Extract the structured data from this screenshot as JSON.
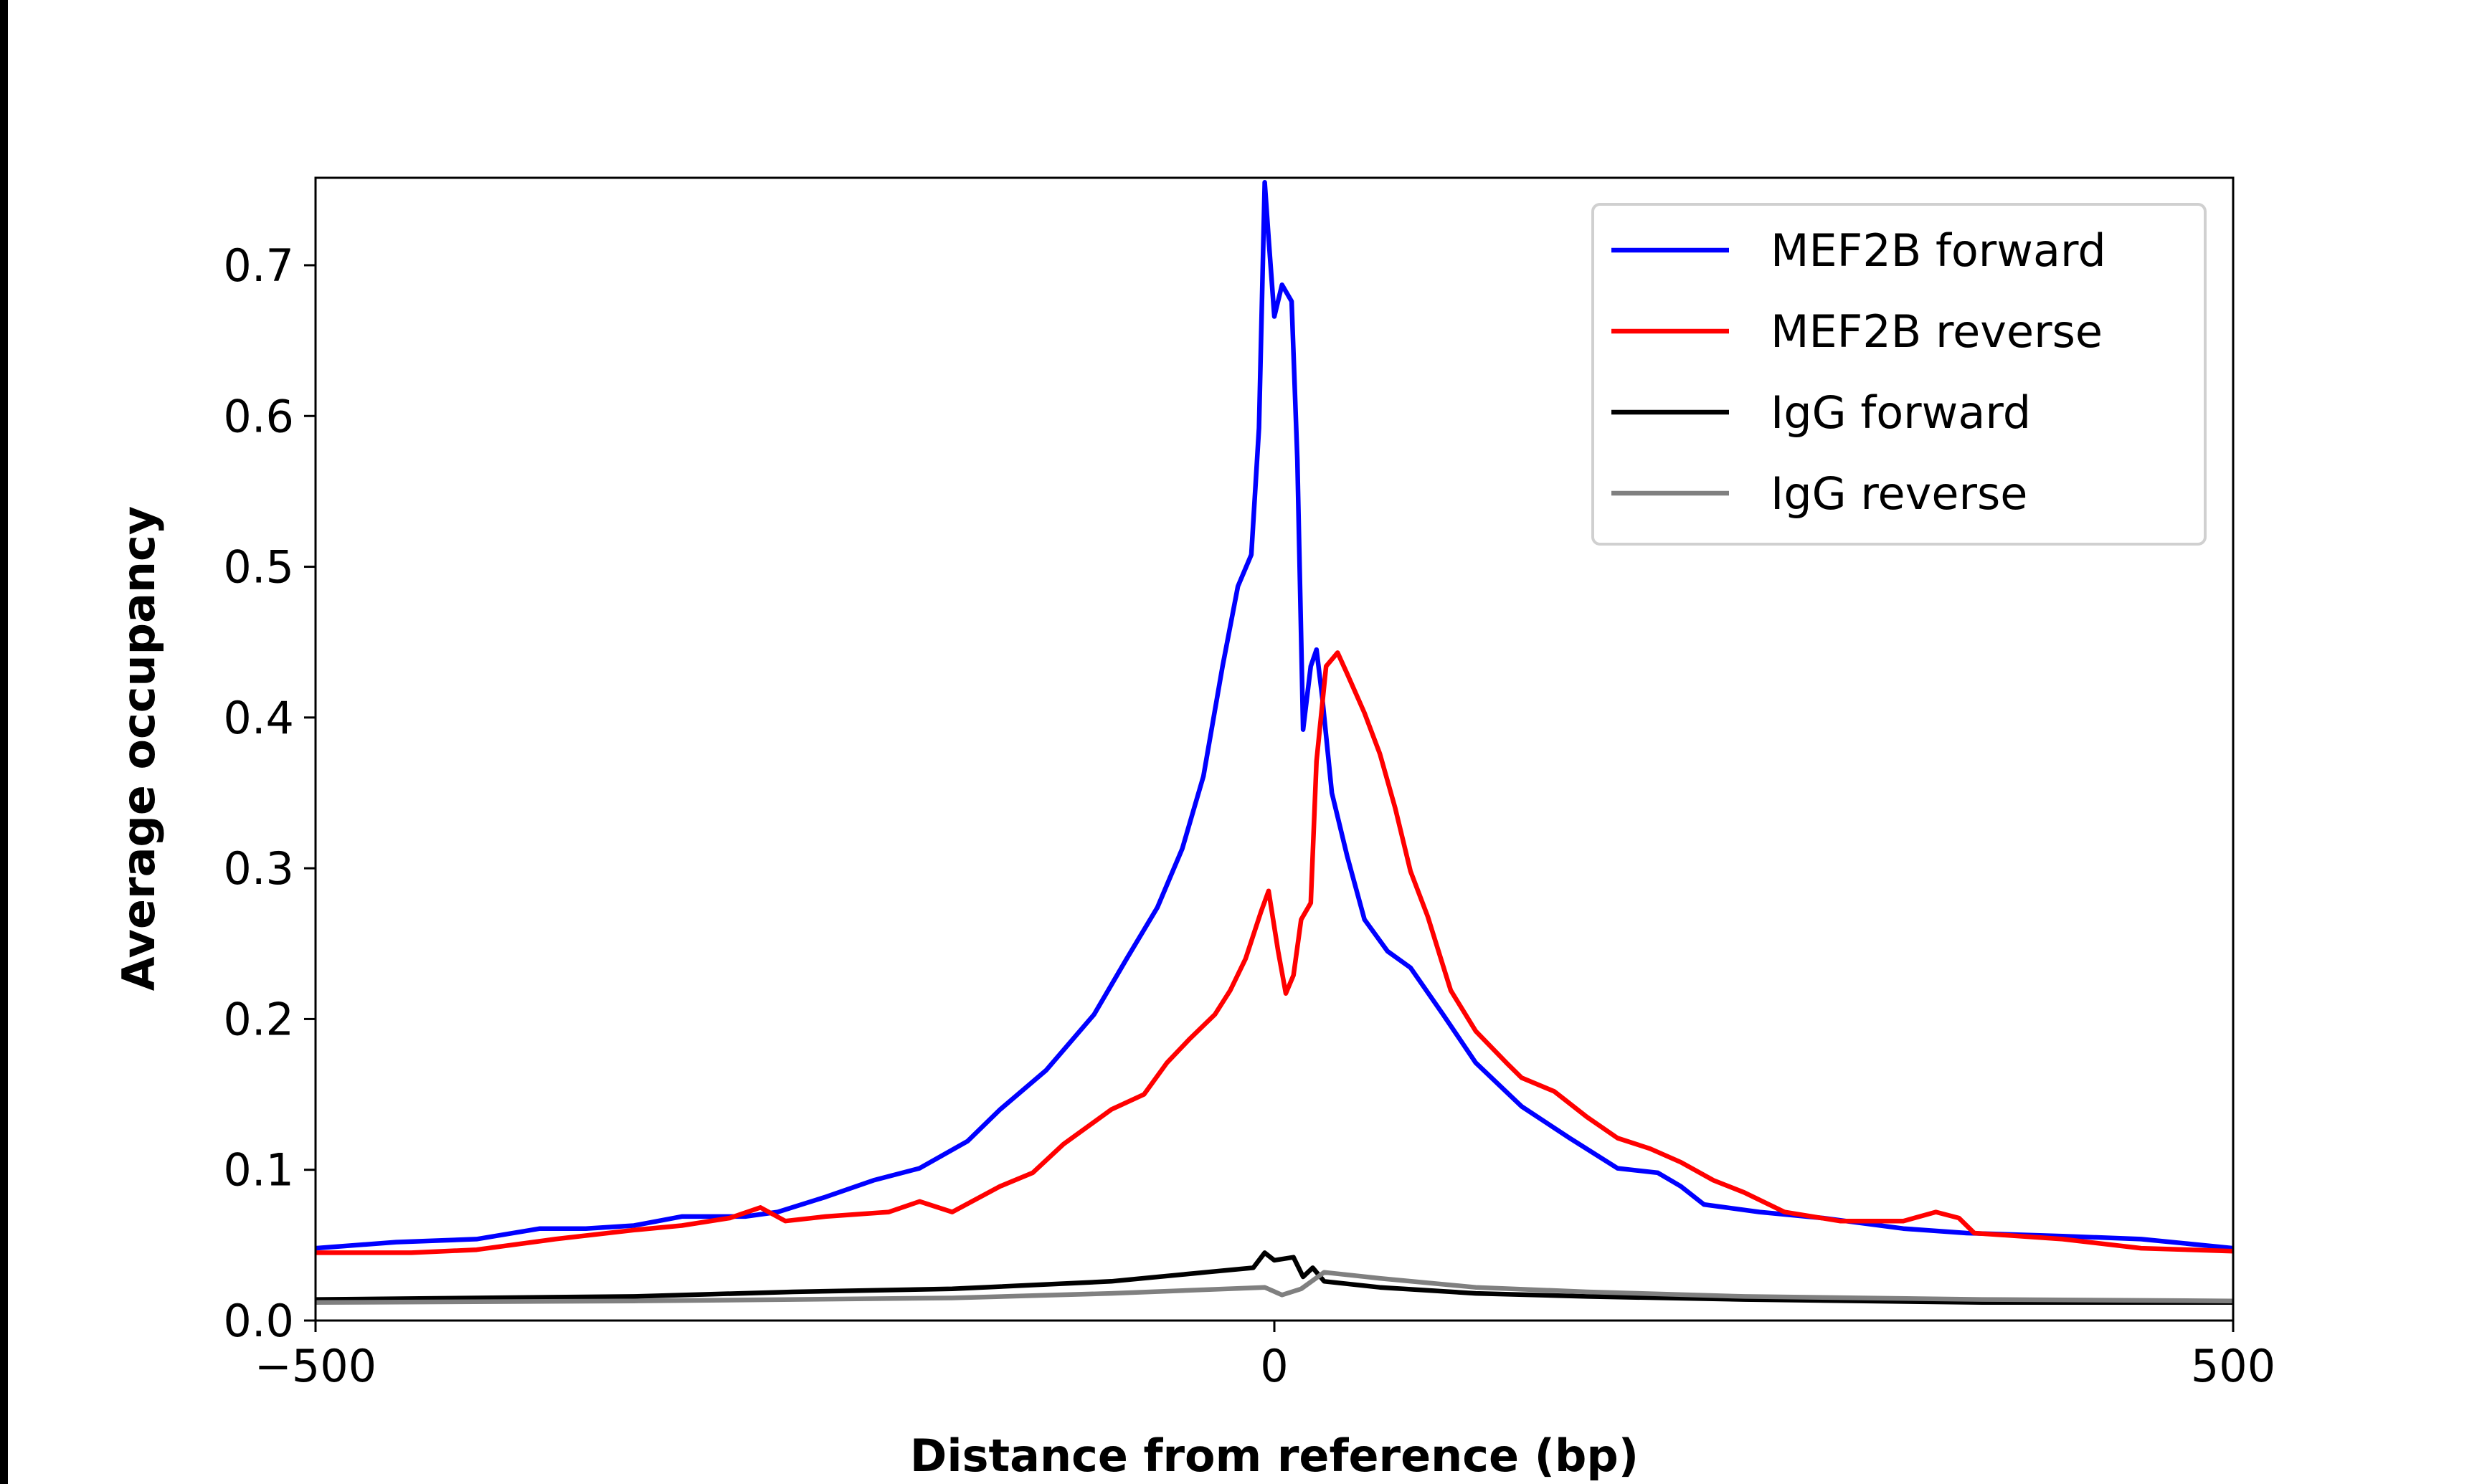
{
  "chart_data": {
    "type": "line",
    "title": "",
    "xlabel": "Distance from reference (bp)",
    "ylabel": "Average occupancy",
    "xlim": [
      -500,
      500
    ],
    "ylim": [
      0,
      0.758
    ],
    "xticks": [
      -500,
      0,
      500
    ],
    "xtick_labels": [
      "−500",
      "0",
      "500"
    ],
    "yticks": [
      0.0,
      0.1,
      0.2,
      0.3,
      0.4,
      0.5,
      0.6,
      0.7
    ],
    "ytick_labels": [
      "0.0",
      "0.1",
      "0.2",
      "0.3",
      "0.4",
      "0.5",
      "0.6",
      "0.7"
    ],
    "grid": false,
    "legend_position": "top-right",
    "series": [
      {
        "name": "MEF2B forward",
        "color": "#0000ff",
        "x": [
          -500,
          -458,
          -416,
          -383,
          -359,
          -334,
          -309,
          -276,
          -259,
          -234,
          -209,
          -185,
          -160,
          -143,
          -119,
          -94,
          -77,
          -61,
          -48,
          -37,
          -27,
          -19,
          -12,
          -8,
          -5,
          -3,
          0,
          4,
          9,
          12,
          15,
          19,
          22,
          25,
          30,
          38,
          47,
          59,
          71,
          88,
          105,
          129,
          154,
          179,
          200,
          212,
          224,
          253,
          286,
          328,
          361,
          411,
          452,
          500
        ],
        "y": [
          0.048,
          0.052,
          0.054,
          0.061,
          0.061,
          0.063,
          0.069,
          0.069,
          0.072,
          0.082,
          0.093,
          0.101,
          0.119,
          0.14,
          0.166,
          0.203,
          0.24,
          0.274,
          0.313,
          0.361,
          0.434,
          0.487,
          0.508,
          0.592,
          0.755,
          0.718,
          0.666,
          0.687,
          0.676,
          0.571,
          0.392,
          0.434,
          0.445,
          0.413,
          0.35,
          0.308,
          0.266,
          0.245,
          0.234,
          0.203,
          0.171,
          0.142,
          0.121,
          0.101,
          0.098,
          0.089,
          0.077,
          0.072,
          0.068,
          0.061,
          0.058,
          0.056,
          0.054,
          0.048
        ]
      },
      {
        "name": "MEF2B reverse",
        "color": "#ff0000",
        "x": [
          -500,
          -450,
          -416,
          -375,
          -334,
          -309,
          -284,
          -268,
          -255,
          -234,
          -201,
          -185,
          -168,
          -143,
          -126,
          -110,
          -85,
          -68,
          -56,
          -44,
          -31,
          -23,
          -15,
          -7,
          -3,
          2,
          6,
          10,
          14,
          19,
          22,
          27,
          33,
          38,
          47,
          55,
          63,
          71,
          80,
          92,
          105,
          121,
          129,
          146,
          163,
          179,
          196,
          212,
          229,
          245,
          266,
          295,
          328,
          345,
          357,
          365,
          411,
          452,
          500
        ],
        "y": [
          0.045,
          0.045,
          0.047,
          0.054,
          0.06,
          0.063,
          0.068,
          0.075,
          0.066,
          0.069,
          0.072,
          0.079,
          0.072,
          0.089,
          0.098,
          0.117,
          0.14,
          0.15,
          0.171,
          0.187,
          0.203,
          0.219,
          0.24,
          0.271,
          0.285,
          0.245,
          0.217,
          0.229,
          0.266,
          0.277,
          0.371,
          0.434,
          0.443,
          0.429,
          0.403,
          0.376,
          0.34,
          0.298,
          0.268,
          0.219,
          0.192,
          0.171,
          0.161,
          0.152,
          0.135,
          0.121,
          0.114,
          0.105,
          0.093,
          0.085,
          0.072,
          0.066,
          0.066,
          0.072,
          0.068,
          0.058,
          0.054,
          0.048,
          0.046
        ]
      },
      {
        "name": "IgG forward",
        "color": "#000000",
        "x": [
          -500,
          -334,
          -251,
          -168,
          -85,
          -36,
          -11,
          -5,
          0,
          10,
          15,
          20,
          26,
          55,
          105,
          163,
          245,
          369,
          500
        ],
        "y": [
          0.014,
          0.016,
          0.019,
          0.021,
          0.026,
          0.032,
          0.035,
          0.045,
          0.04,
          0.042,
          0.029,
          0.035,
          0.026,
          0.022,
          0.018,
          0.016,
          0.014,
          0.012,
          0.012
        ]
      },
      {
        "name": "IgG reverse",
        "color": "#808080",
        "x": [
          -500,
          -334,
          -251,
          -168,
          -85,
          -5,
          4,
          14,
          26,
          55,
          105,
          163,
          245,
          369,
          500
        ],
        "y": [
          0.012,
          0.013,
          0.014,
          0.015,
          0.018,
          0.022,
          0.017,
          0.021,
          0.032,
          0.028,
          0.022,
          0.019,
          0.016,
          0.014,
          0.013
        ]
      }
    ]
  }
}
